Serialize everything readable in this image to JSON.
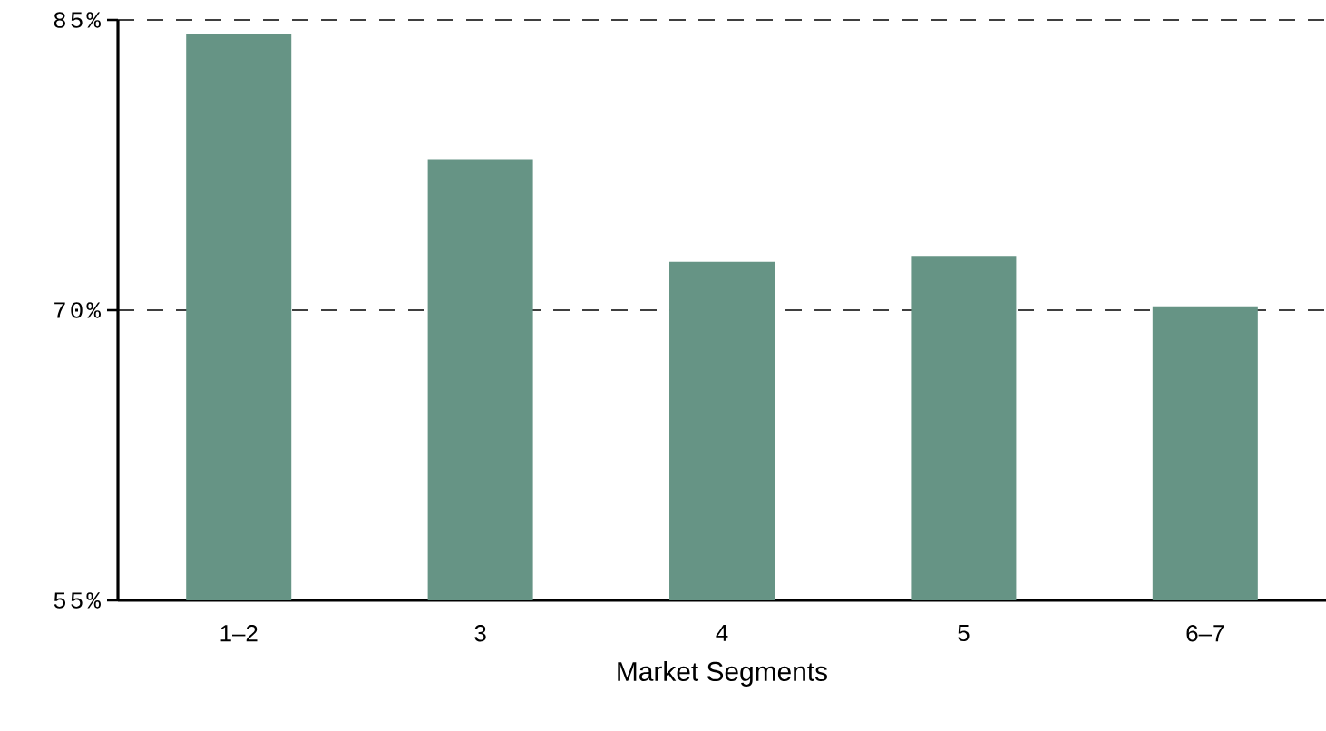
{
  "chart_data": {
    "type": "bar",
    "xlabel": "Market Segments",
    "categories": [
      "1–2",
      "3",
      "4",
      "5",
      "6–7"
    ],
    "values": [
      84.3,
      77.8,
      72.5,
      72.8,
      70.2
    ],
    "color": "#669485",
    "ylim": [
      55,
      85
    ],
    "yticks": [
      {
        "value": 55,
        "label": "55%"
      },
      {
        "value": 70,
        "label": "70%"
      },
      {
        "value": 85,
        "label": "85%"
      }
    ],
    "grid": "y"
  }
}
